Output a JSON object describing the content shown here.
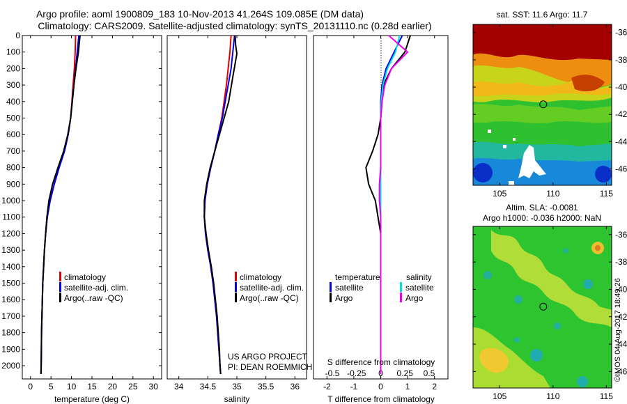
{
  "title": {
    "line1": "Argo profile: aoml 1900809_183 10-Nov-2013 41.264S 109.085E (DM data)",
    "line2": "Climatology: CARS2009. Satellite-adjusted climatology: synTS_20131110.nc (0.28d earlier)"
  },
  "colors": {
    "climatology": "#e00000",
    "satellite": "#0000ee",
    "argo": "#000000",
    "sal_satellite": "#00e0e0",
    "sal_argo": "#ee00ee"
  },
  "chart_data": [
    {
      "type": "line",
      "name": "temperature-panel",
      "xlabel": "temperature (deg C)",
      "ylabel": "",
      "xlim": [
        -2,
        32
      ],
      "ylim": [
        2080,
        0
      ],
      "xticks": [
        0,
        5,
        10,
        15,
        20,
        25,
        30
      ],
      "yticks": [
        0,
        100,
        200,
        300,
        400,
        500,
        600,
        700,
        800,
        900,
        1000,
        1100,
        1200,
        1300,
        1400,
        1500,
        1600,
        1700,
        1800,
        1900,
        2000
      ],
      "legend": [
        {
          "label": "climatology",
          "color": "#e00000"
        },
        {
          "label": "satellite-adj. clim.",
          "color": "#0000ee"
        },
        {
          "label": "Argo(..raw -QC)",
          "color": "#000000"
        }
      ],
      "series": [
        {
          "name": "climatology",
          "color": "#e00000",
          "x": [
            11.0,
            10.9,
            10.7,
            10.4,
            10.1,
            9.8,
            9.2,
            8.3,
            7.0,
            5.8,
            4.8,
            4.1,
            3.7,
            3.4,
            3.2,
            3.0,
            2.9,
            2.8,
            2.7,
            2.65,
            2.6,
            2.55
          ],
          "y": [
            0,
            100,
            200,
            300,
            400,
            500,
            600,
            700,
            800,
            900,
            1000,
            1100,
            1200,
            1300,
            1400,
            1500,
            1600,
            1700,
            1800,
            1900,
            2000,
            2050
          ]
        },
        {
          "name": "satellite-adj. clim.",
          "color": "#0000ee",
          "x": [
            11.8,
            11.4,
            11.0,
            10.6,
            10.2,
            9.8,
            9.2,
            8.3,
            7.0,
            5.8,
            4.8,
            4.1,
            3.7,
            3.4,
            3.2,
            3.0,
            2.9,
            2.8,
            2.7,
            2.65,
            2.6,
            2.55
          ],
          "y": [
            0,
            100,
            200,
            300,
            400,
            500,
            600,
            700,
            800,
            900,
            1000,
            1100,
            1200,
            1300,
            1400,
            1500,
            1600,
            1700,
            1800,
            1900,
            2000,
            2050
          ]
        },
        {
          "name": "Argo(..raw -QC)",
          "color": "#000000",
          "x": [
            12.1,
            11.7,
            11.1,
            10.6,
            10.2,
            9.8,
            9.1,
            8.1,
            6.7,
            5.4,
            4.5,
            4.0,
            3.7,
            3.4,
            3.2,
            3.0,
            2.9,
            2.8,
            2.7,
            2.65,
            2.6,
            2.55
          ],
          "y": [
            0,
            100,
            200,
            300,
            400,
            500,
            600,
            700,
            800,
            900,
            1000,
            1100,
            1200,
            1300,
            1400,
            1500,
            1600,
            1700,
            1800,
            1900,
            2000,
            2050
          ]
        }
      ]
    },
    {
      "type": "line",
      "name": "salinity-panel",
      "xlabel": "salinity",
      "xlim": [
        33.8,
        36.2
      ],
      "ylim": [
        2080,
        0
      ],
      "xticks": [
        34,
        34.5,
        35,
        35.5,
        36
      ],
      "legend": [
        {
          "label": "climatology",
          "color": "#e00000"
        },
        {
          "label": "satellite-adj. clim.",
          "color": "#0000ee"
        },
        {
          "label": "Argo(..raw -QC)",
          "color": "#000000"
        }
      ],
      "annotation": [
        "US ARGO PROJECT",
        "PI: DEAN ROEMMICH"
      ],
      "series": [
        {
          "name": "climatology",
          "color": "#e00000",
          "x": [
            34.9,
            34.88,
            34.85,
            34.82,
            34.78,
            34.74,
            34.68,
            34.62,
            34.55,
            34.49,
            34.45,
            34.44,
            34.46,
            34.5,
            34.55,
            34.59,
            34.62,
            34.65,
            34.67,
            34.69,
            34.71,
            34.72
          ],
          "y": [
            0,
            100,
            200,
            300,
            400,
            500,
            600,
            700,
            800,
            900,
            1000,
            1100,
            1200,
            1300,
            1400,
            1500,
            1600,
            1700,
            1800,
            1900,
            2000,
            2050
          ]
        },
        {
          "name": "satellite-adj. clim.",
          "color": "#0000ee",
          "x": [
            34.96,
            34.93,
            34.9,
            34.85,
            34.8,
            34.75,
            34.68,
            34.62,
            34.55,
            34.49,
            34.45,
            34.44,
            34.46,
            34.5,
            34.55,
            34.59,
            34.62,
            34.65,
            34.67,
            34.69,
            34.71,
            34.72
          ],
          "y": [
            0,
            100,
            200,
            300,
            400,
            500,
            600,
            700,
            800,
            900,
            1000,
            1100,
            1200,
            1300,
            1400,
            1500,
            1600,
            1700,
            1800,
            1900,
            2000,
            2050
          ]
        },
        {
          "name": "Argo(..raw -QC)",
          "color": "#000000",
          "x": [
            34.97,
            34.98,
            35.0,
            34.93,
            34.86,
            34.78,
            34.7,
            34.62,
            34.54,
            34.48,
            34.44,
            34.44,
            34.47,
            34.51,
            34.56,
            34.6,
            34.63,
            34.66,
            34.68,
            34.7,
            34.71,
            34.72
          ],
          "y": [
            0,
            60,
            110,
            250,
            400,
            500,
            600,
            700,
            800,
            900,
            1000,
            1100,
            1200,
            1300,
            1400,
            1500,
            1600,
            1700,
            1800,
            1900,
            2000,
            2050
          ]
        }
      ]
    },
    {
      "type": "line",
      "name": "difference-panel",
      "xlabel": "T difference from climatology",
      "xlabel2": "S difference from climatology",
      "xlim": [
        -2.5,
        2.5
      ],
      "ylim": [
        2080,
        0
      ],
      "xticks": [
        -2,
        -1,
        0,
        1,
        2
      ],
      "xticks2": [
        "-0.5",
        "-0.25",
        "0",
        "0.25",
        "0.5"
      ],
      "legend": {
        "temperature_header": "temperature",
        "salinity_header": "salinity",
        "temperature": [
          {
            "label": "satellite",
            "color": "#0000ee"
          },
          {
            "label": "Argo",
            "color": "#000000"
          }
        ],
        "salinity": [
          {
            "label": "satellite",
            "color": "#00e0e0"
          },
          {
            "label": "Argo",
            "color": "#ee00ee"
          }
        ]
      },
      "series": [
        {
          "name": "T satellite",
          "color": "#0000ee",
          "x": [
            0.8,
            0.5,
            0.2,
            0.05,
            0.0,
            0.0,
            0.0,
            0.0,
            0.0,
            0.0,
            0.0,
            0.0,
            0.0,
            0.0,
            0.0,
            0.0,
            0.0,
            0.0,
            0.0,
            0.0
          ],
          "y": [
            0,
            100,
            200,
            300,
            400,
            500,
            600,
            700,
            800,
            900,
            1000,
            1100,
            1200,
            1300,
            1400,
            1500,
            1600,
            1700,
            1800,
            2050
          ]
        },
        {
          "name": "T Argo",
          "color": "#000000",
          "x": [
            1.1,
            0.9,
            0.4,
            0.1,
            0.05,
            0.0,
            -0.1,
            -0.3,
            -0.55,
            -0.45,
            -0.2,
            -0.1,
            0.0,
            0.0,
            0.0,
            0.0,
            0.0,
            0.0,
            0.0,
            0.0
          ],
          "y": [
            0,
            100,
            200,
            300,
            400,
            500,
            600,
            700,
            800,
            900,
            1000,
            1100,
            1200,
            1300,
            1400,
            1500,
            1600,
            1700,
            1800,
            2050
          ]
        },
        {
          "name": "S satellite",
          "color": "#00e0e0",
          "x": [
            0.7,
            0.55,
            0.25,
            0.08,
            0.02,
            0.0,
            0.0,
            0.0,
            0.0,
            0.0,
            0.0,
            0.0,
            0.0,
            0.0,
            0.0,
            0.0,
            0.0,
            0.0,
            0.0,
            0.0
          ],
          "y": [
            0,
            100,
            200,
            300,
            400,
            500,
            600,
            700,
            800,
            900,
            1000,
            1100,
            1200,
            1300,
            1400,
            1500,
            1600,
            1700,
            1800,
            2050
          ]
        },
        {
          "name": "S Argo",
          "color": "#ee00ee",
          "x": [
            0.3,
            1.0,
            0.4,
            0.15,
            0.05,
            0.0,
            0.0,
            0.0,
            0.0,
            -0.05,
            -0.05,
            0.0,
            0.0,
            0.0,
            0.0,
            0.0,
            0.0,
            0.0,
            0.0,
            0.0
          ],
          "y": [
            0,
            100,
            200,
            300,
            400,
            500,
            600,
            700,
            800,
            900,
            1000,
            1100,
            1200,
            1300,
            1400,
            1500,
            1600,
            1700,
            1800,
            2050
          ]
        }
      ]
    },
    {
      "type": "heatmap",
      "name": "sst-map",
      "title": "sat. SST: 11.6 Argo: 11.7",
      "xlim": [
        102.5,
        115.5
      ],
      "ylim": [
        -47.2,
        -35.4
      ],
      "xticks": [
        105,
        110,
        115
      ],
      "yticks": [
        -36,
        -38,
        -40,
        -42,
        -44,
        -46
      ],
      "marker": {
        "lon": 109.085,
        "lat": -41.264
      }
    },
    {
      "type": "heatmap",
      "name": "sla-map",
      "title": "Altim. SLA: -0.0081",
      "subtitle": "Argo h1000: -0.036 h2000: NaN",
      "xlim": [
        102.5,
        115.5
      ],
      "ylim": [
        -47.2,
        -35.4
      ],
      "xticks": [
        105,
        110,
        115
      ],
      "yticks": [
        -36,
        -38,
        -40,
        -42,
        -44,
        -46
      ],
      "marker": {
        "lon": 109.085,
        "lat": -41.264
      }
    }
  ],
  "watermark": "©IMOS 04-Aug-2017 18:49:26"
}
